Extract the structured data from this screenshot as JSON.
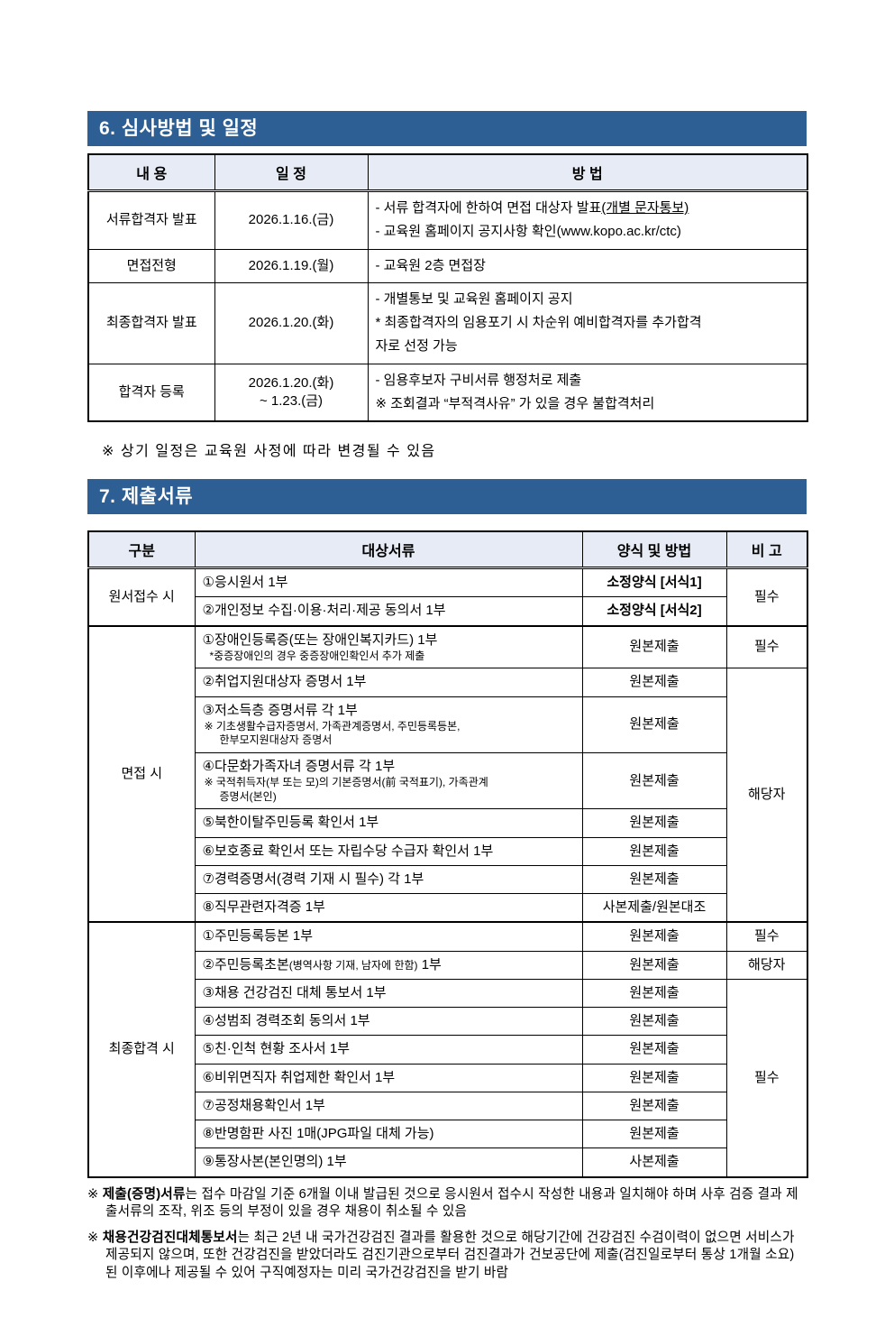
{
  "colors": {
    "accent": "#2e5f94",
    "table_header_bg": "#e6ebf5"
  },
  "section6": {
    "title": "6. 심사방법 및 일정",
    "table": {
      "headers": [
        "내 용",
        "일 정",
        "방 법"
      ],
      "rows": [
        {
          "content": "서류합격자 발표",
          "schedule": [
            "2026.1.16.(금)"
          ],
          "method": [
            {
              "segments": [
                {
                  "t": "- 서류 합격자에 한하여 면접 대상자 발표"
                },
                {
                  "t": "(개별 문자통보)",
                  "u": true
                }
              ]
            },
            {
              "segments": [
                {
                  "t": "- 교육원 홈페이지 공지사항 확인(www.kopo.ac.kr/ctc)"
                }
              ]
            }
          ]
        },
        {
          "content": "면접전형",
          "schedule": [
            "2026.1.19.(월)"
          ],
          "method": [
            {
              "segments": [
                {
                  "t": "- 교육원 2층 면접장"
                }
              ]
            }
          ]
        },
        {
          "content": "최종합격자 발표",
          "schedule": [
            "2026.1.20.(화)"
          ],
          "method": [
            {
              "segments": [
                {
                  "t": "- 개별통보 및 교육원 홈페이지 공지"
                }
              ]
            },
            {
              "indent": 1,
              "segments": [
                {
                  "t": "* 최종합격자의 임용포기 시 차순위 예비합격자를 추가합격"
                }
              ]
            },
            {
              "indent": 2,
              "segments": [
                {
                  "t": "자로 선정 가능"
                }
              ]
            }
          ]
        },
        {
          "content": "합격자 등록",
          "schedule": [
            "2026.1.20.(화)",
            "~ 1.23.(금)"
          ],
          "method": [
            {
              "segments": [
                {
                  "t": "- 임용후보자 구비서류 행정처로 제출"
                }
              ]
            },
            {
              "indent": 1,
              "segments": [
                {
                  "t": "※ 조회결과 “부적격사유” 가 있을 경우 불합격처리"
                }
              ]
            }
          ]
        }
      ]
    },
    "note": "※ 상기 일정은 교육원 사정에 따라 변경될 수 있음"
  },
  "section7": {
    "title": "7. 제출서류",
    "table": {
      "headers": [
        "구분",
        "대상서류",
        "양식 및 방법",
        "비  고"
      ],
      "groups": [
        {
          "label": "원서접수 시",
          "rows": [
            {
              "docs": [
                {
                  "t": "①응시원서 1부"
                }
              ],
              "form": {
                "t": "소정양식 [서식1]",
                "bold": true
              },
              "bigo": {
                "t": "필수",
                "rowspan": 2
              }
            },
            {
              "docs": [
                {
                  "t": "②개인정보 수집·이용·처리·제공 동의서 1부"
                }
              ],
              "form": {
                "t": "소정양식 [서식2]",
                "bold": true
              }
            }
          ]
        },
        {
          "label": "면접 시",
          "rows": [
            {
              "docs": [
                {
                  "t": "①장애인등록증(또는 장애인복지카드) 1부"
                }
              ],
              "subs": [
                {
                  "t": "*중증장애인의 경우 중증장애인확인서 추가 제출",
                  "indent": 1
                }
              ],
              "form": {
                "t": "원본제출"
              },
              "bigo": {
                "t": "필수",
                "rowspan": 1
              }
            },
            {
              "docs": [
                {
                  "t": "②취업지원대상자 증명서 1부"
                }
              ],
              "form": {
                "t": "원본제출"
              },
              "bigo": {
                "t": "해당자",
                "rowspan": 7
              }
            },
            {
              "docs": [
                {
                  "t": "③저소득층 증명서류 각 1부"
                }
              ],
              "subs": [
                {
                  "t": "※ 기초생활수급자증명서, 가족관계증명서, 주민등록등본,"
                },
                {
                  "t": "한부모지원대상자 증명서",
                  "indent": 2
                }
              ],
              "form": {
                "t": "원본제출"
              }
            },
            {
              "docs": [
                {
                  "t": "④다문화가족자녀 증명서류 각 1부"
                }
              ],
              "subs": [
                {
                  "t": "※ 국적취득자(부 또는 모)의 기본증명서(前 국적표기), 가족관계"
                },
                {
                  "t": "증명서(본인)",
                  "indent": 2
                }
              ],
              "form": {
                "t": "원본제출"
              }
            },
            {
              "docs": [
                {
                  "t": "⑤북한이탈주민등록 확인서 1부"
                }
              ],
              "form": {
                "t": "원본제출"
              }
            },
            {
              "docs": [
                {
                  "t": "⑥보호종료 확인서 또는 자립수당 수급자 확인서 1부"
                }
              ],
              "form": {
                "t": "원본제출"
              }
            },
            {
              "docs": [
                {
                  "t": "⑦경력증명서(경력 기재 시 필수) 각 1부"
                }
              ],
              "form": {
                "t": "원본제출"
              }
            },
            {
              "docs": [
                {
                  "t": "⑧직무관련자격증 1부"
                }
              ],
              "form": {
                "t": "사본제출/원본대조"
              }
            }
          ]
        },
        {
          "label": "최종합격 시",
          "rows": [
            {
              "docs": [
                {
                  "t": "①주민등록등본 1부"
                }
              ],
              "form": {
                "t": "원본제출"
              },
              "bigo": {
                "t": "필수",
                "rowspan": 1
              }
            },
            {
              "docs": [
                {
                  "t": "②주민등록초본"
                },
                {
                  "t": "(병역사항 기재, 남자에 한함)",
                  "small": true
                },
                {
                  "t": " 1부"
                }
              ],
              "form": {
                "t": "원본제출"
              },
              "bigo": {
                "t": "해당자",
                "rowspan": 1
              }
            },
            {
              "docs": [
                {
                  "t": "③채용 건강검진 대체 통보서 1부"
                }
              ],
              "form": {
                "t": "원본제출"
              },
              "bigo": {
                "t": "필수",
                "rowspan": 7
              }
            },
            {
              "docs": [
                {
                  "t": "④성범죄 경력조회 동의서 1부"
                }
              ],
              "form": {
                "t": "원본제출"
              }
            },
            {
              "docs": [
                {
                  "t": "⑤친·인척 현황 조사서 1부"
                }
              ],
              "form": {
                "t": "원본제출"
              }
            },
            {
              "docs": [
                {
                  "t": "⑥비위면직자 취업제한 확인서 1부"
                }
              ],
              "form": {
                "t": "원본제출"
              }
            },
            {
              "docs": [
                {
                  "t": "⑦공정채용확인서 1부"
                }
              ],
              "form": {
                "t": "원본제출"
              }
            },
            {
              "docs": [
                {
                  "t": "⑧반명함판 사진 1매(JPG파일 대체 가능)"
                }
              ],
              "form": {
                "t": "원본제출"
              }
            },
            {
              "docs": [
                {
                  "t": "⑨통장사본(본인명의) 1부"
                }
              ],
              "form": {
                "t": "사본제출"
              }
            }
          ]
        }
      ]
    },
    "notes": [
      {
        "marker": "※ ",
        "bold": "제출(증명)서류",
        "rest": "는 접수 마감일 기준 6개월 이내 발급된 것으로 응시원서 접수시 작성한 내용과 일치해야 하며 사후 검증 결과 제출서류의 조작, 위조 등의 부정이 있을 경우 채용이 취소될 수 있음"
      },
      {
        "marker": "※ ",
        "bold": "채용건강검진대체통보서",
        "rest": "는 최근 2년 내 국가건강검진 결과를 활용한 것으로 해당기간에 건강검진 수검이력이 없으면 서비스가 제공되지 않으며, 또한 건강검진을 받았더라도 검진기관으로부터 검진결과가 건보공단에 제출(검진일로부터 통상 1개월 소요)된 이후에나 제공될 수 있어 구직예정자는 미리 국가건강검진을 받기 바람"
      }
    ]
  }
}
